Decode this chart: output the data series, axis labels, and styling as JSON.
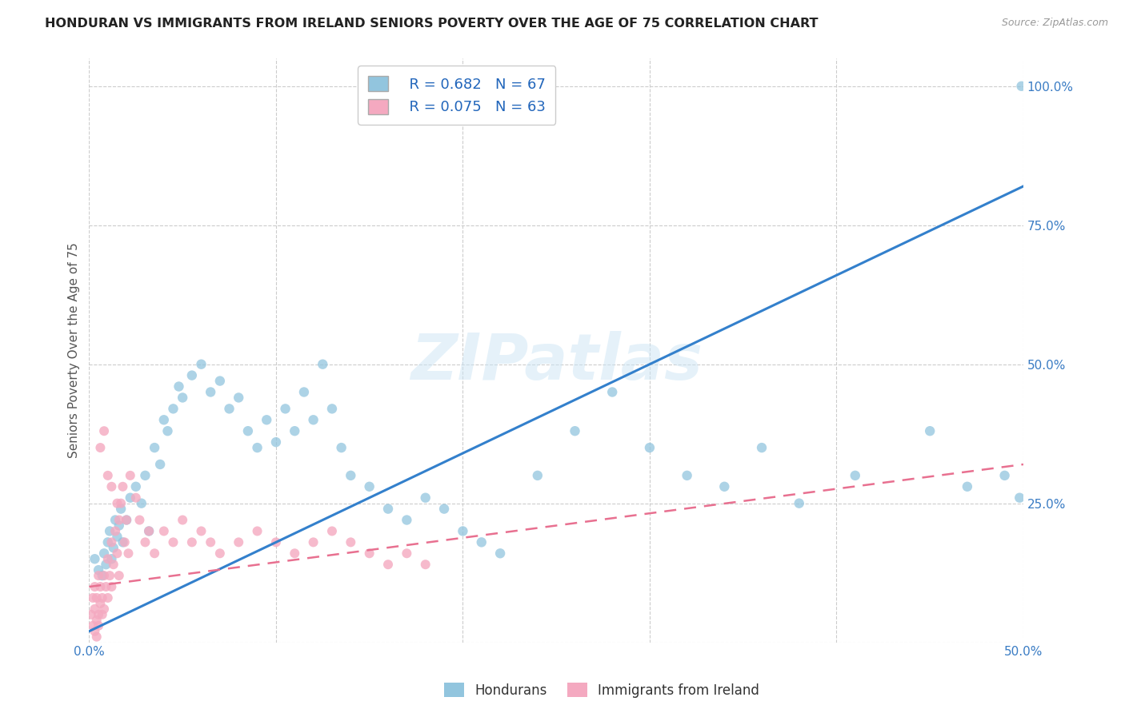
{
  "title": "HONDURAN VS IMMIGRANTS FROM IRELAND SENIORS POVERTY OVER THE AGE OF 75 CORRELATION CHART",
  "source": "Source: ZipAtlas.com",
  "ylabel": "Seniors Poverty Over the Age of 75",
  "xlim": [
    0.0,
    0.5
  ],
  "ylim": [
    0.0,
    1.05
  ],
  "xtick_positions": [
    0.0,
    0.1,
    0.2,
    0.3,
    0.4,
    0.5
  ],
  "xticklabels": [
    "0.0%",
    "",
    "",
    "",
    "",
    "50.0%"
  ],
  "ytick_positions": [
    0.0,
    0.25,
    0.5,
    0.75,
    1.0
  ],
  "ytick_labels": [
    "",
    "25.0%",
    "50.0%",
    "75.0%",
    "100.0%"
  ],
  "blue_color": "#92c5de",
  "pink_color": "#f4a9c0",
  "blue_line_color": "#3380cc",
  "pink_line_color": "#e87090",
  "blue_R": 0.682,
  "blue_N": 67,
  "pink_R": 0.075,
  "pink_N": 63,
  "legend_label_blue": "Hondurans",
  "legend_label_pink": "Immigrants from Ireland",
  "watermark": "ZIPatlas",
  "blue_line_x0": 0.0,
  "blue_line_y0": 0.02,
  "blue_line_x1": 0.5,
  "blue_line_y1": 0.82,
  "pink_line_x0": 0.0,
  "pink_line_y0": 0.1,
  "pink_line_x1": 0.5,
  "pink_line_y1": 0.32,
  "blue_scatter_x": [
    0.003,
    0.005,
    0.007,
    0.008,
    0.009,
    0.01,
    0.011,
    0.012,
    0.013,
    0.014,
    0.015,
    0.016,
    0.017,
    0.018,
    0.02,
    0.022,
    0.025,
    0.028,
    0.03,
    0.032,
    0.035,
    0.038,
    0.04,
    0.042,
    0.045,
    0.048,
    0.05,
    0.055,
    0.06,
    0.065,
    0.07,
    0.075,
    0.08,
    0.085,
    0.09,
    0.095,
    0.1,
    0.105,
    0.11,
    0.115,
    0.12,
    0.125,
    0.13,
    0.135,
    0.14,
    0.15,
    0.16,
    0.17,
    0.18,
    0.19,
    0.2,
    0.21,
    0.22,
    0.24,
    0.26,
    0.28,
    0.3,
    0.32,
    0.34,
    0.36,
    0.38,
    0.41,
    0.45,
    0.47,
    0.49,
    0.498,
    0.499
  ],
  "blue_scatter_y": [
    0.15,
    0.13,
    0.12,
    0.16,
    0.14,
    0.18,
    0.2,
    0.15,
    0.17,
    0.22,
    0.19,
    0.21,
    0.24,
    0.18,
    0.22,
    0.26,
    0.28,
    0.25,
    0.3,
    0.2,
    0.35,
    0.32,
    0.4,
    0.38,
    0.42,
    0.46,
    0.44,
    0.48,
    0.5,
    0.45,
    0.47,
    0.42,
    0.44,
    0.38,
    0.35,
    0.4,
    0.36,
    0.42,
    0.38,
    0.45,
    0.4,
    0.5,
    0.42,
    0.35,
    0.3,
    0.28,
    0.24,
    0.22,
    0.26,
    0.24,
    0.2,
    0.18,
    0.16,
    0.3,
    0.38,
    0.45,
    0.35,
    0.3,
    0.28,
    0.35,
    0.25,
    0.3,
    0.38,
    0.28,
    0.3,
    0.26,
    1.0
  ],
  "pink_scatter_x": [
    0.001,
    0.002,
    0.002,
    0.003,
    0.003,
    0.004,
    0.004,
    0.005,
    0.005,
    0.006,
    0.006,
    0.007,
    0.007,
    0.008,
    0.008,
    0.009,
    0.01,
    0.01,
    0.011,
    0.012,
    0.012,
    0.013,
    0.014,
    0.015,
    0.016,
    0.016,
    0.017,
    0.018,
    0.019,
    0.02,
    0.021,
    0.022,
    0.025,
    0.027,
    0.03,
    0.032,
    0.035,
    0.04,
    0.045,
    0.05,
    0.055,
    0.06,
    0.065,
    0.07,
    0.08,
    0.09,
    0.1,
    0.11,
    0.12,
    0.13,
    0.14,
    0.15,
    0.16,
    0.17,
    0.18,
    0.006,
    0.008,
    0.01,
    0.012,
    0.015,
    0.003,
    0.004,
    0.005
  ],
  "pink_scatter_y": [
    0.05,
    0.08,
    0.03,
    0.06,
    0.1,
    0.04,
    0.08,
    0.05,
    0.12,
    0.07,
    0.1,
    0.05,
    0.08,
    0.12,
    0.06,
    0.1,
    0.15,
    0.08,
    0.12,
    0.18,
    0.1,
    0.14,
    0.2,
    0.16,
    0.22,
    0.12,
    0.25,
    0.28,
    0.18,
    0.22,
    0.16,
    0.3,
    0.26,
    0.22,
    0.18,
    0.2,
    0.16,
    0.2,
    0.18,
    0.22,
    0.18,
    0.2,
    0.18,
    0.16,
    0.18,
    0.2,
    0.18,
    0.16,
    0.18,
    0.2,
    0.18,
    0.16,
    0.14,
    0.16,
    0.14,
    0.35,
    0.38,
    0.3,
    0.28,
    0.25,
    0.02,
    0.01,
    0.03
  ]
}
